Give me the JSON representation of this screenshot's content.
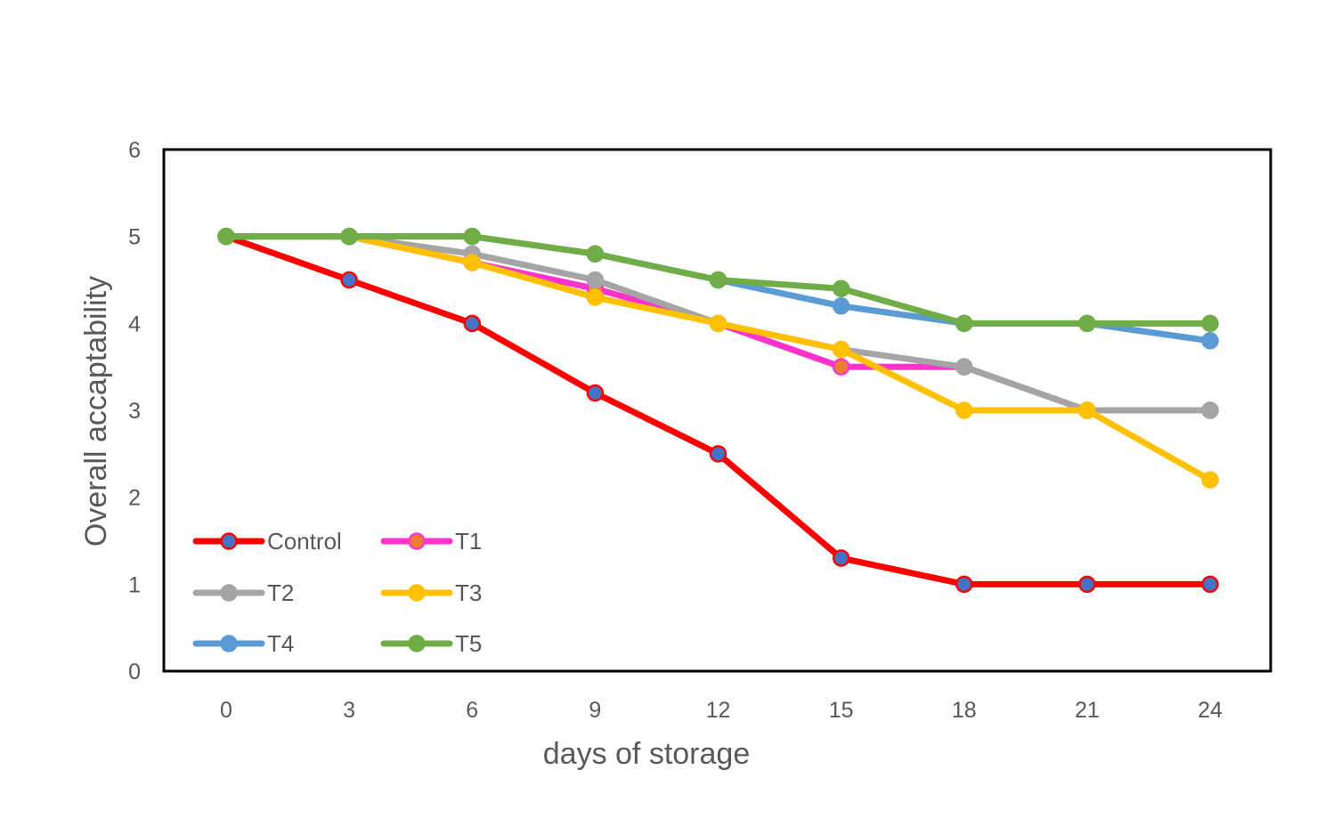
{
  "chart_data": {
    "type": "line",
    "title": "",
    "xlabel": "days of storage",
    "ylabel": "Overall accaptability",
    "x": [
      0,
      3,
      6,
      9,
      12,
      15,
      18,
      21,
      24
    ],
    "ylim": [
      0,
      6
    ],
    "yticks": [
      0,
      1,
      2,
      3,
      4,
      5,
      6
    ],
    "grid": false,
    "legend_position": "bottom-left",
    "series": [
      {
        "name": "Control",
        "color": "#ff0000",
        "marker_fill": "#4472c4",
        "marker_edge": "#ff0000",
        "values": [
          5,
          4.5,
          4,
          3.2,
          2.5,
          1.3,
          1,
          1,
          1
        ]
      },
      {
        "name": "T1",
        "color": "#ff33cc",
        "marker_fill": "#ed7d31",
        "marker_edge": "#ff33cc",
        "values": [
          5,
          5,
          4.7,
          4.4,
          4,
          3.5,
          3.5,
          3,
          3
        ]
      },
      {
        "name": "T2",
        "color": "#a5a5a5",
        "marker_fill": "#a5a5a5",
        "marker_edge": "#a5a5a5",
        "values": [
          5,
          5,
          4.8,
          4.5,
          4,
          3.7,
          3.5,
          3,
          3
        ]
      },
      {
        "name": "T3",
        "color": "#ffc000",
        "marker_fill": "#ffc000",
        "marker_edge": "#ffc000",
        "values": [
          5,
          5,
          4.7,
          4.3,
          4,
          3.7,
          3,
          3,
          2.2
        ]
      },
      {
        "name": "T4",
        "color": "#5b9bd5",
        "marker_fill": "#5b9bd5",
        "marker_edge": "#5b9bd5",
        "values": [
          5,
          5,
          5,
          4.8,
          4.5,
          4.2,
          4,
          4,
          3.8
        ]
      },
      {
        "name": "T5",
        "color": "#70ad47",
        "marker_fill": "#70ad47",
        "marker_edge": "#70ad47",
        "values": [
          5,
          5,
          5,
          4.8,
          4.5,
          4.4,
          4,
          4,
          4
        ]
      }
    ]
  }
}
